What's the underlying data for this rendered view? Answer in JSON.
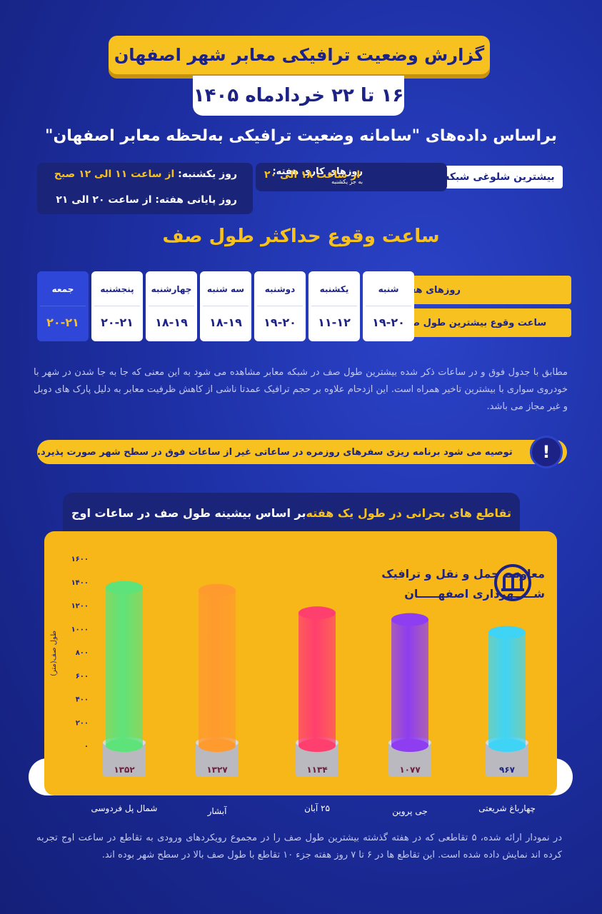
{
  "header": {
    "title": "گزارش وضعیت ترافیکی معابر شهر اصفهان",
    "date_range": "۱۶ تا ۲۲ خردادماه ۱۴۰۵",
    "subtitle": "براساس داده‌های \"سامانه وضعیت ترافیکی به‌لحظه معابر اصفهان\""
  },
  "peak": {
    "label": "بیشترین شلوغی شبکه",
    "weekdays_key": "روزهای کاری هفته:",
    "weekdays_note": "به جز یکشنبه",
    "weekdays_value": "از ساعت ۱۸ الی ۲۰",
    "sunday_key": "روز یکشنبه:",
    "sunday_value": "از ساعت ۱۱ الی ۱۲ صبح",
    "weekend_key": "روز پایانی هفته:",
    "weekend_value": "از ساعت ۲۰ الی ۲۱"
  },
  "section_title": "ساعت وقوع حداکثر طول صف",
  "table": {
    "row_days_label": "روزهای هفته",
    "row_hours_label": "ساعت وقوع بیشترین طول صف",
    "days": [
      {
        "name": "شنبه",
        "hours": "۱۹-۲۰"
      },
      {
        "name": "یکشنبه",
        "hours": "۱۱-۱۲"
      },
      {
        "name": "دوشنبه",
        "hours": "۱۹-۲۰"
      },
      {
        "name": "سه شنبه",
        "hours": "۱۸-۱۹"
      },
      {
        "name": "چهارشنبه",
        "hours": "۱۸-۱۹"
      },
      {
        "name": "پنجشنبه",
        "hours": "۲۰-۲۱"
      },
      {
        "name": "جمعه",
        "hours": "۲۰-۲۱"
      }
    ]
  },
  "paragraph_1": "مطابق با جدول فوق و در ساعات ذکر شده بیشترین طول صف در شبکه معابر مشاهده می شود به این معنی که جا به جا شدن در شهر با خودروی سواری با بیشترین تاخیر همراه است. این ازدحام علاوه بر حجم ترافیک عمدتا ناشی از کاهش ظرفیت معابر به دلیل پارک های دوبل و غیر مجاز می باشد.",
  "tip": "توصیه می شود برنامه ریزی سفرهای روزمره در ساعاتی غیر از ساعات فوق در سطح شهر صورت پذیرد.",
  "tip_icon": "!",
  "chart_tab": {
    "highlight": "تقاطع های بحرانی در طول یک هفته",
    "rest": " بر اساس بیشینه طول صف در ساعات اوج"
  },
  "brand": {
    "line1": "معاونت حمل و نقل و ترافیک",
    "line2": "شـــــهرداری اصفهـــــان",
    "logo_icon": "municipality-logo-icon"
  },
  "chart_data": {
    "type": "bar",
    "title": "تقاطع های بحرانی در طول یک هفته بر اساس بیشینه طول صف در ساعات اوج",
    "ylabel": "طول صف(متر)",
    "ylim": [
      0,
      1600
    ],
    "yticks": [
      "۰",
      "۲۰۰",
      "۴۰۰",
      "۶۰۰",
      "۸۰۰",
      "۱۰۰۰",
      "۱۲۰۰",
      "۱۴۰۰",
      "۱۶۰۰"
    ],
    "categories": [
      "شمال پل فردوسی",
      "آبشار",
      "۲۵ آبان",
      "جی پروین",
      "چهارباغ شریعتی"
    ],
    "values": [
      1352,
      1327,
      1134,
      1077,
      967
    ],
    "value_labels": [
      "۱۳۵۲",
      "۱۳۲۷",
      "۱۱۳۴",
      "۱۰۷۷",
      "۹۶۷"
    ],
    "colors": [
      "#5ee37a",
      "#ff9a2e",
      "#ff3f6e",
      "#8e3df0",
      "#3fd4f5"
    ]
  },
  "paragraph_2": "در نمودار ارائه شده، ۵ تقاطعی که در هفته گذشته بیشترین طول صف را در مجموع رویکردهای ورودی به تقاطع در ساعت اوج تجربه کرده اند نمایش داده شده است. این تقاطع ها در ۶ تا ۷ روز هفته جزء ۱۰ تقاطع با طول صف بالا در سطح شهر بوده اند."
}
